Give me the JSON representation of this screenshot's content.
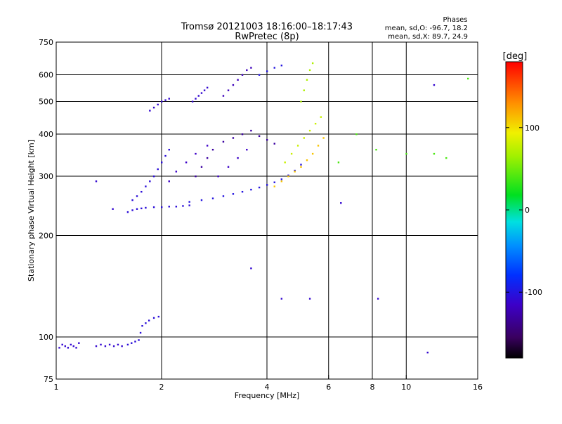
{
  "chart_data": {
    "type": "scatter",
    "title": "Tromsø 20121003 18:16:00–18:17:43",
    "subtitle": "RwPretec (8p)",
    "xlabel": "Frequency [MHz]",
    "ylabel": "Stationary phase Virtual Height [km]",
    "x_scale": "log",
    "y_scale": "log",
    "xlim": [
      1,
      16
    ],
    "ylim": [
      75,
      750
    ],
    "x_ticks": [
      1,
      2,
      4,
      6,
      8,
      10,
      16
    ],
    "x_tick_labels": [
      "1",
      "2",
      "4",
      "6",
      "8",
      "10",
      "16"
    ],
    "y_ticks": [
      75,
      100,
      200,
      300,
      400,
      500,
      600,
      750
    ],
    "y_tick_labels": [
      "75",
      "100",
      "200",
      "300",
      "400",
      "500",
      "600",
      "750"
    ],
    "grid": true,
    "stats": {
      "heading": "Phases",
      "line_o": "mean, sd,O: -96.7, 18.2",
      "line_x": "mean, sd,X: 89.7, 24.9"
    },
    "colorbar": {
      "label": "[deg]",
      "range": [
        -180,
        180
      ],
      "ticks": [
        -100,
        0,
        100
      ],
      "tick_labels": [
        "-100",
        "0",
        "100"
      ],
      "colormap": "rainbow (black-purple-blue-cyan-green-yellow-orange-red)"
    },
    "series": [
      {
        "phase_deg": -110,
        "x": [
          1.02,
          1.04,
          1.06,
          1.08,
          1.1,
          1.12,
          1.14,
          1.16
        ],
        "y": [
          93,
          95,
          94,
          93,
          95,
          94,
          93,
          96
        ]
      },
      {
        "phase_deg": -110,
        "x": [
          1.3,
          1.34,
          1.38,
          1.42,
          1.46,
          1.5,
          1.54
        ],
        "y": [
          94,
          95,
          94,
          95,
          94,
          95,
          94
        ]
      },
      {
        "phase_deg": -105,
        "x": [
          1.6,
          1.64,
          1.68,
          1.72,
          1.74,
          1.76,
          1.8,
          1.84,
          1.9,
          1.96
        ],
        "y": [
          95,
          96,
          97,
          98,
          103,
          108,
          110,
          112,
          114,
          115
        ]
      },
      {
        "phase_deg": -105,
        "x": [
          1.6,
          1.65,
          1.7,
          1.75,
          1.8,
          1.9,
          2.0,
          2.1,
          2.2,
          2.3,
          2.4
        ],
        "y": [
          235,
          238,
          240,
          241,
          242,
          243,
          243,
          244,
          244,
          245,
          246
        ]
      },
      {
        "phase_deg": -105,
        "x": [
          1.65,
          1.7,
          1.75,
          1.8,
          1.85,
          1.9,
          1.95,
          2.0,
          2.05,
          2.1
        ],
        "y": [
          255,
          262,
          270,
          280,
          290,
          300,
          315,
          330,
          345,
          360
        ]
      },
      {
        "phase_deg": -100,
        "x": [
          2.4,
          2.6,
          2.8,
          3.0,
          3.2,
          3.4,
          3.6,
          3.8,
          4.0,
          4.2,
          4.4,
          4.6,
          4.8,
          5.0
        ],
        "y": [
          252,
          255,
          258,
          262,
          266,
          270,
          274,
          278,
          283,
          288,
          294,
          302,
          312,
          325
        ]
      },
      {
        "phase_deg": -130,
        "x": [
          2.5,
          2.6,
          2.7,
          2.8,
          3.0,
          3.2,
          3.4,
          3.6,
          3.8,
          4.0,
          4.2
        ],
        "y": [
          300,
          320,
          340,
          360,
          380,
          390,
          400,
          410,
          395,
          385,
          375
        ]
      },
      {
        "phase_deg": -115,
        "x": [
          2.1,
          2.2,
          2.35,
          2.5,
          2.7,
          2.9,
          3.1,
          3.3,
          3.5
        ],
        "y": [
          290,
          310,
          330,
          350,
          370,
          300,
          320,
          340,
          360
        ]
      },
      {
        "phase_deg": 110,
        "x": [
          4.2,
          4.4,
          4.6,
          4.8,
          5.0,
          5.2,
          5.4,
          5.6,
          5.8
        ],
        "y": [
          280,
          290,
          300,
          310,
          320,
          335,
          350,
          370,
          390
        ]
      },
      {
        "phase_deg": 80,
        "x": [
          4.5,
          4.7,
          4.9,
          5.1,
          5.3,
          5.5,
          5.7
        ],
        "y": [
          330,
          350,
          370,
          390,
          410,
          430,
          450
        ]
      },
      {
        "phase_deg": -110,
        "x": [
          1.85,
          1.9,
          1.95,
          2.0,
          2.05,
          2.1
        ],
        "y": [
          470,
          480,
          490,
          500,
          505,
          510
        ]
      },
      {
        "phase_deg": -110,
        "x": [
          2.45,
          2.5,
          2.55,
          2.6,
          2.65,
          2.7
        ],
        "y": [
          500,
          510,
          520,
          530,
          540,
          550
        ]
      },
      {
        "phase_deg": -120,
        "x": [
          3.0,
          3.1,
          3.2,
          3.3,
          3.4,
          3.5,
          3.6
        ],
        "y": [
          520,
          540,
          560,
          580,
          600,
          620,
          630
        ]
      },
      {
        "phase_deg": -100,
        "x": [
          3.8,
          4.0,
          4.2,
          4.4
        ],
        "y": [
          600,
          615,
          630,
          640
        ]
      },
      {
        "phase_deg": 70,
        "x": [
          5.0,
          5.1,
          5.2,
          5.3,
          5.4
        ],
        "y": [
          500,
          540,
          580,
          620,
          650
        ]
      },
      {
        "phase_deg": 40,
        "x": [
          6.4,
          7.2,
          8.2,
          10.0,
          12.0,
          13.0,
          15.0
        ],
        "y": [
          330,
          400,
          360,
          350,
          350,
          340,
          585
        ]
      },
      {
        "phase_deg": -110,
        "x": [
          1.3,
          1.45,
          3.6,
          4.4,
          5.3,
          6.5,
          8.3,
          11.5,
          12.0
        ],
        "y": [
          290,
          240,
          160,
          130,
          130,
          250,
          130,
          90,
          560
        ]
      }
    ]
  }
}
